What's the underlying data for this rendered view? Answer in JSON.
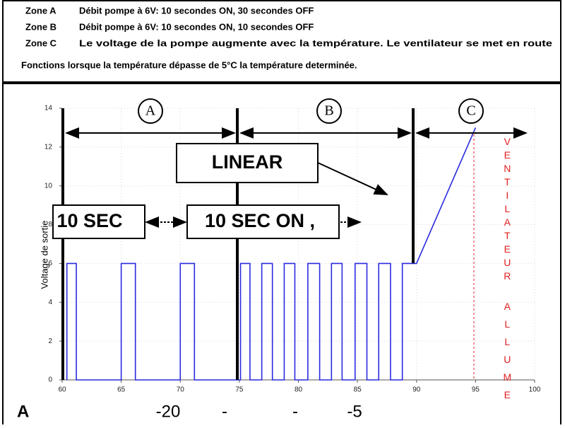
{
  "header": {
    "rows": [
      [
        "Zone A",
        "Débit pompe à 6V: 10 secondes ON, 30 secondes OFF"
      ],
      [
        "Zone B",
        "Débit pompe à 6V: 10 secondes ON, 10 secondes OFF"
      ],
      [
        "Zone C",
        "Le voltage de la pompe augmente avec la température. Le ventilateur se met en route"
      ]
    ],
    "note": "Fonctions lorsque la température dépasse de 5°C la température determinée."
  },
  "chart_data": {
    "type": "line",
    "ylabel": "Voltage de sortie",
    "x": [
      60.4,
      60.4,
      61.2,
      61.2,
      65,
      65,
      66.2,
      66.2,
      70,
      70,
      71.2,
      71.2,
      75.1,
      75.1,
      75.9,
      75.9,
      76.9,
      76.9,
      77.8,
      77.8,
      78.8,
      78.8,
      79.7,
      79.7,
      80.8,
      80.8,
      81.8,
      81.8,
      82.8,
      82.8,
      83.7,
      83.7,
      84.8,
      84.8,
      85.8,
      85.8,
      86.8,
      86.8,
      87.8,
      87.8,
      88.8,
      88.8,
      90,
      95
    ],
    "series": [
      {
        "color": "#2a2ae0",
        "values": [
          0,
          6,
          6,
          0,
          0,
          6,
          6,
          0,
          0,
          6,
          6,
          0,
          0,
          6,
          6,
          0,
          0,
          6,
          6,
          0,
          0,
          6,
          6,
          0,
          0,
          6,
          6,
          0,
          0,
          6,
          6,
          0,
          0,
          6,
          6,
          0,
          0,
          6,
          6,
          0,
          0,
          6,
          6,
          13
        ]
      }
    ],
    "xlim": [
      60,
      100
    ],
    "ylim": [
      0,
      14
    ],
    "xticks": [
      60,
      65,
      70,
      75,
      80,
      85,
      90,
      95,
      100
    ],
    "yticks": [
      0,
      2,
      4,
      6,
      8,
      10,
      12,
      14
    ],
    "grid": true,
    "annotations": {
      "zones": [
        "A",
        "B",
        "C"
      ],
      "boxes": [
        "LINEAR",
        "10 SEC",
        "10 SEC ON ,"
      ],
      "vertical_text": [
        "VENTILATEUR",
        "ALLUME"
      ]
    },
    "footer": [
      "A",
      "-20",
      "-",
      "-",
      "-5"
    ]
  }
}
